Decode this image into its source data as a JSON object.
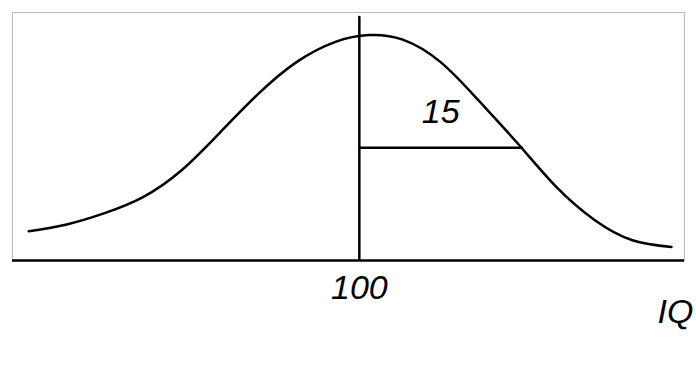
{
  "chart_data": {
    "type": "line",
    "x_label": "IQ",
    "x": [
      69.5,
      73,
      76.5,
      80,
      83.6,
      87.2,
      90.7,
      94.2,
      97.8,
      100.9,
      104,
      107.5,
      111,
      114.6,
      118.1,
      121.7,
      125.2,
      128.8
    ],
    "values": [
      13,
      16,
      21,
      28,
      40,
      57,
      74,
      88,
      97,
      100,
      98,
      88,
      71,
      52,
      33,
      18,
      9,
      6
    ],
    "color": "#000000",
    "xlim": [
      68,
      130
    ],
    "ylim": [
      0,
      110
    ],
    "xticks": [
      100
    ],
    "tick_labels": "x",
    "mean_line": {
      "x": 100,
      "y": [
        0,
        108
      ]
    },
    "sd_segment": {
      "x": [
        100,
        115
      ],
      "y": 50
    },
    "annotations": [
      {
        "text": "15",
        "x": 107.5,
        "y": 61
      }
    ]
  }
}
